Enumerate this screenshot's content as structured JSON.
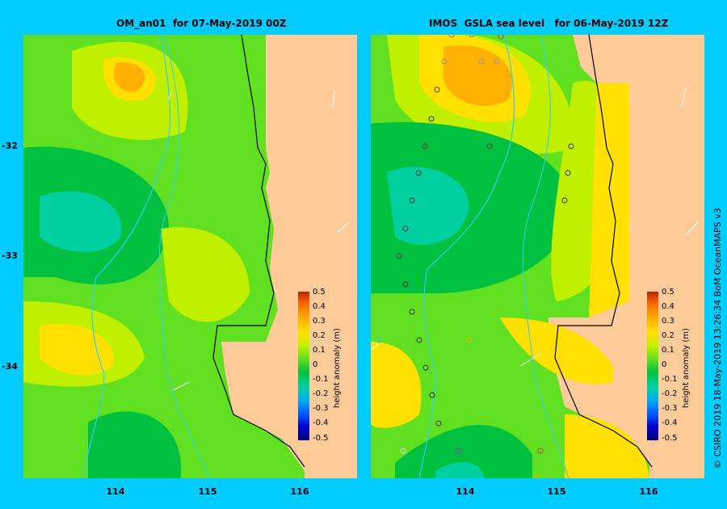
{
  "left_panel": {
    "title": "OM_an01  for 07-May-2019 00Z"
  },
  "right_panel": {
    "title": "IMOS  GSLA sea level   for 06-May-2019 12Z"
  },
  "axes": {
    "latitude_ticks": [
      "-32",
      "-33",
      "-34"
    ],
    "longitude_ticks": [
      "114",
      "115",
      "116"
    ]
  },
  "colorbar": {
    "label": "height anomaly (m)",
    "ticks": [
      "0.5",
      "0.4",
      "0.3",
      "0.2",
      "0.1",
      "0",
      "-0.1",
      "-0.2",
      "-0.3",
      "-0.4",
      "-0.5"
    ],
    "colors": [
      "#000080",
      "#0000d0",
      "#0060ff",
      "#00b0f0",
      "#00d0a0",
      "#00c040",
      "#60e020",
      "#c0f000",
      "#ffe000",
      "#ffb000",
      "#ff7000",
      "#c02000"
    ]
  },
  "credit": "© CSIRO 2019   18-May-2019 13:26:34 BoM OceanMAPS v3"
}
